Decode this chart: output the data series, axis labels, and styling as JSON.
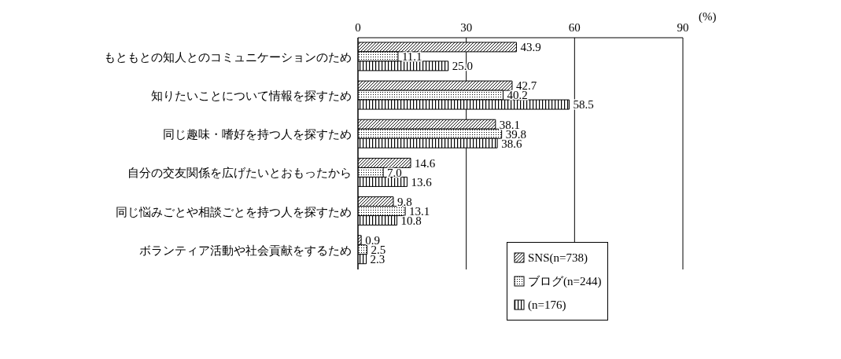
{
  "chart_data": {
    "type": "bar",
    "orientation": "horizontal",
    "xlabel": "(%)",
    "categories": [
      "もともとの知人とのコミュニケーションのため",
      "知りたいことについて情報を探すため",
      "同じ趣味・嗜好を持つ人を探すため",
      "自分の交友関係を広げたいとおもったから",
      "同じ悩みごとや相談ごとを持つ人を探すため",
      "ボランティア活動や社会貢献をするため"
    ],
    "series": [
      {
        "name": "SNS(n=738)",
        "color": "#000000",
        "values": [
          43.9,
          42.7,
          38.1,
          14.6,
          9.8,
          0.9
        ],
        "value_labels": [
          "43.9",
          "42.7",
          "38.1",
          "14.6",
          "9.8",
          "0.9"
        ]
      },
      {
        "name": "ブログ(n=244)",
        "color": "#000000",
        "values": [
          11.1,
          40.2,
          39.8,
          7.0,
          13.1,
          2.5
        ],
        "value_labels": [
          "11.1",
          "40.2",
          "39.8",
          "7.0",
          "13.1",
          "2.5"
        ]
      },
      {
        "name": "(n=176)",
        "color": "#000000",
        "values": [
          25.0,
          58.5,
          38.6,
          13.6,
          10.8,
          2.3
        ],
        "value_labels": [
          "25.0",
          "58.5",
          "38.6",
          "13.6",
          "10.8",
          "2.3"
        ]
      }
    ],
    "xlim": [
      0,
      90
    ],
    "xticks": [
      0,
      30,
      60,
      90
    ],
    "grid": "x",
    "legend": "bottom right"
  }
}
